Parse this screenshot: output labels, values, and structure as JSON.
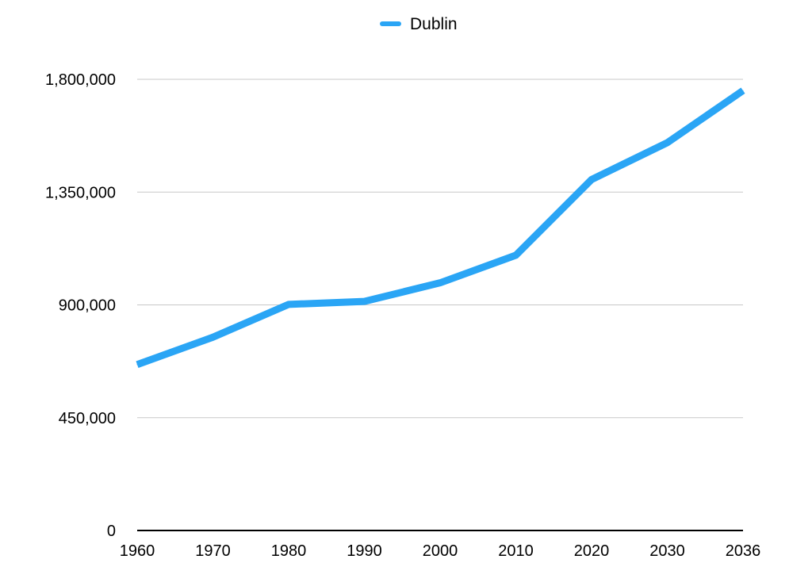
{
  "chart_data": {
    "type": "line",
    "categories": [
      "1960",
      "1970",
      "1980",
      "1990",
      "2000",
      "2010",
      "2020",
      "2030",
      "2036"
    ],
    "series": [
      {
        "name": "Dublin",
        "color": "#2AA5F5",
        "values": [
          662000,
          771000,
          902000,
          914000,
          988000,
          1098000,
          1400000,
          1547000,
          1755000
        ]
      }
    ],
    "y_ticks": [
      0,
      450000,
      900000,
      1350000,
      1800000
    ],
    "y_tick_labels": [
      "0",
      "450,000",
      "900,000",
      "1,350,000",
      "1,800,000"
    ],
    "ylim": [
      0,
      1800000
    ],
    "grid": true,
    "legend_position": "top-center"
  }
}
